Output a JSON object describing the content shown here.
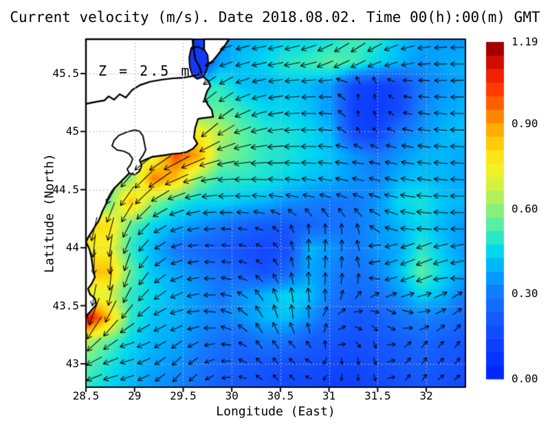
{
  "title": "Current velocity (m/s). Date 2018.08.02. Time 00(h):00(m) GMT",
  "annotation": "Z = 2.5 m",
  "axes": {
    "xlabel": "Longitude (East)",
    "ylabel": "Latitude (North)",
    "x_ticks": [
      {
        "value": 28.5,
        "label": "28.5"
      },
      {
        "value": 29,
        "label": "29"
      },
      {
        "value": 29.5,
        "label": "29.5"
      },
      {
        "value": 30,
        "label": "30"
      },
      {
        "value": 30.5,
        "label": "30.5"
      },
      {
        "value": 31,
        "label": "31"
      },
      {
        "value": 31.5,
        "label": "31.5"
      },
      {
        "value": 32,
        "label": "32"
      }
    ],
    "y_ticks": [
      {
        "value": 45.5,
        "label": "45.5"
      },
      {
        "value": 45,
        "label": "45"
      },
      {
        "value": 44.5,
        "label": "44.5"
      },
      {
        "value": 44,
        "label": "44"
      },
      {
        "value": 43.5,
        "label": "43.5"
      },
      {
        "value": 43,
        "label": "43"
      }
    ]
  },
  "colorbar": {
    "min": 0,
    "max": 1.19,
    "units": "m/s",
    "ticks": [
      {
        "value": 1.19,
        "label": "1.19"
      },
      {
        "value": 0.9,
        "label": "0.90"
      },
      {
        "value": 0.6,
        "label": "0.60"
      },
      {
        "value": 0.3,
        "label": "0.30"
      },
      {
        "value": 0.0,
        "label": "0.00"
      }
    ],
    "stops": [
      [
        0.0,
        "#0020ff"
      ],
      [
        0.18,
        "#1450ff"
      ],
      [
        0.3,
        "#1478ff"
      ],
      [
        0.38,
        "#00a8ff"
      ],
      [
        0.45,
        "#00d8f0"
      ],
      [
        0.5,
        "#2ae8c8"
      ],
      [
        0.55,
        "#5cf0a0"
      ],
      [
        0.6,
        "#8cf078"
      ],
      [
        0.66,
        "#c0f050"
      ],
      [
        0.72,
        "#eef42e"
      ],
      [
        0.78,
        "#fce818"
      ],
      [
        0.84,
        "#ffc80a"
      ],
      [
        0.9,
        "#ffa000"
      ],
      [
        0.97,
        "#ff6400"
      ],
      [
        1.04,
        "#ff3000"
      ],
      [
        1.1,
        "#e61400"
      ],
      [
        1.15,
        "#b40000"
      ],
      [
        1.19,
        "#8c0000"
      ]
    ]
  },
  "chart_data": {
    "type": "heatmap",
    "overlay": "quiver",
    "units": "m/s",
    "depth_m": 2.5,
    "lon_range": [
      28.5,
      32.403
    ],
    "lat_range": [
      42.798,
      45.796
    ],
    "grid_shape": [
      16,
      18
    ],
    "speed_grid": [
      [
        0.1,
        0.1,
        0.1,
        0.1,
        0.1,
        0.1,
        0.35,
        0.4,
        0.42,
        0.45,
        0.45,
        0.48,
        0.52,
        0.5,
        0.42,
        0.38,
        0.36,
        0.35
      ],
      [
        0.12,
        0.12,
        0.12,
        0.12,
        0.12,
        0.12,
        0.38,
        0.42,
        0.45,
        0.5,
        0.52,
        0.55,
        0.52,
        0.45,
        0.4,
        0.35,
        0.38,
        0.4
      ],
      [
        0.5,
        0.5,
        0.5,
        0.5,
        0.5,
        0.5,
        0.5,
        0.42,
        0.4,
        0.42,
        0.4,
        0.35,
        0.15,
        0.12,
        0.15,
        0.3,
        0.35,
        0.38
      ],
      [
        0.55,
        0.55,
        0.55,
        0.55,
        0.55,
        0.55,
        0.55,
        0.5,
        0.45,
        0.45,
        0.42,
        0.35,
        0.12,
        0.1,
        0.15,
        0.32,
        0.38,
        0.4
      ],
      [
        0.75,
        0.75,
        0.75,
        0.75,
        0.75,
        0.75,
        0.65,
        0.55,
        0.5,
        0.48,
        0.45,
        0.4,
        0.15,
        0.12,
        0.3,
        0.35,
        0.4,
        0.42
      ],
      [
        0.7,
        0.7,
        0.7,
        0.7,
        1.0,
        0.9,
        0.6,
        0.55,
        0.5,
        0.48,
        0.45,
        0.42,
        0.35,
        0.3,
        0.35,
        0.4,
        0.4,
        0.38
      ],
      [
        0.6,
        0.6,
        0.6,
        0.95,
        0.85,
        0.6,
        0.5,
        0.5,
        0.48,
        0.45,
        0.42,
        0.4,
        0.35,
        0.32,
        0.4,
        0.42,
        0.4,
        0.38
      ],
      [
        0.55,
        0.55,
        0.85,
        0.6,
        0.5,
        0.45,
        0.45,
        0.42,
        0.4,
        0.35,
        0.32,
        0.3,
        0.3,
        0.35,
        0.45,
        0.48,
        0.42,
        0.4
      ],
      [
        0.8,
        0.8,
        0.55,
        0.45,
        0.4,
        0.35,
        0.3,
        0.25,
        0.22,
        0.2,
        0.25,
        0.28,
        0.3,
        0.35,
        0.4,
        0.45,
        0.4,
        0.35
      ],
      [
        0.75,
        0.75,
        0.5,
        0.4,
        0.3,
        0.25,
        0.22,
        0.18,
        0.15,
        0.18,
        0.4,
        0.35,
        0.3,
        0.35,
        0.38,
        0.5,
        0.42,
        0.35
      ],
      [
        0.85,
        0.85,
        0.55,
        0.42,
        0.38,
        0.32,
        0.28,
        0.22,
        0.18,
        0.25,
        0.38,
        0.32,
        0.28,
        0.32,
        0.42,
        0.55,
        0.45,
        0.38
      ],
      [
        0.7,
        0.7,
        0.5,
        0.45,
        0.4,
        0.35,
        0.3,
        0.35,
        0.4,
        0.45,
        0.42,
        0.3,
        0.25,
        0.28,
        0.35,
        0.45,
        0.4,
        0.3
      ],
      [
        1.15,
        0.85,
        0.5,
        0.42,
        0.4,
        0.35,
        0.32,
        0.35,
        0.4,
        0.42,
        0.35,
        0.25,
        0.2,
        0.22,
        0.28,
        0.32,
        0.3,
        0.25
      ],
      [
        0.65,
        0.55,
        0.45,
        0.4,
        0.38,
        0.32,
        0.28,
        0.25,
        0.3,
        0.28,
        0.22,
        0.2,
        0.18,
        0.2,
        0.22,
        0.25,
        0.22,
        0.2
      ],
      [
        0.55,
        0.48,
        0.42,
        0.38,
        0.35,
        0.3,
        0.25,
        0.22,
        0.2,
        0.18,
        0.18,
        0.15,
        0.15,
        0.18,
        0.2,
        0.22,
        0.2,
        0.18
      ],
      [
        0.5,
        0.45,
        0.4,
        0.35,
        0.32,
        0.28,
        0.22,
        0.2,
        0.18,
        0.15,
        0.15,
        0.12,
        0.12,
        0.15,
        0.18,
        0.2,
        0.18,
        0.15
      ]
    ],
    "angle_deg_grid": [
      [
        200,
        200,
        200,
        200,
        200,
        200,
        200,
        195,
        190,
        195,
        200,
        210,
        215,
        210,
        200,
        190,
        185,
        180
      ],
      [
        205,
        205,
        205,
        205,
        205,
        205,
        200,
        195,
        190,
        190,
        195,
        205,
        210,
        205,
        195,
        185,
        180,
        180
      ],
      [
        215,
        215,
        215,
        215,
        215,
        215,
        215,
        200,
        190,
        185,
        185,
        180,
        100,
        100,
        170,
        175,
        180,
        185
      ],
      [
        220,
        220,
        220,
        220,
        220,
        220,
        220,
        205,
        195,
        185,
        180,
        175,
        90,
        95,
        165,
        170,
        175,
        180
      ],
      [
        225,
        225,
        225,
        225,
        225,
        225,
        215,
        200,
        190,
        185,
        180,
        175,
        120,
        140,
        165,
        170,
        175,
        180
      ],
      [
        215,
        215,
        215,
        215,
        210,
        205,
        195,
        190,
        185,
        180,
        178,
        175,
        172,
        170,
        170,
        172,
        175,
        178
      ],
      [
        230,
        230,
        230,
        220,
        205,
        195,
        185,
        180,
        178,
        175,
        172,
        170,
        168,
        165,
        168,
        172,
        175,
        178
      ],
      [
        245,
        245,
        235,
        215,
        200,
        190,
        182,
        178,
        172,
        168,
        165,
        160,
        155,
        160,
        170,
        175,
        178,
        180
      ],
      [
        255,
        255,
        240,
        215,
        200,
        190,
        180,
        172,
        160,
        120,
        95,
        90,
        95,
        140,
        165,
        170,
        175,
        178
      ],
      [
        265,
        265,
        245,
        220,
        200,
        185,
        175,
        168,
        150,
        110,
        90,
        85,
        90,
        195,
        200,
        205,
        195,
        190
      ],
      [
        270,
        270,
        250,
        225,
        200,
        185,
        170,
        160,
        140,
        105,
        90,
        85,
        88,
        195,
        200,
        200,
        195,
        190
      ],
      [
        260,
        260,
        240,
        220,
        205,
        190,
        175,
        150,
        120,
        100,
        95,
        90,
        60,
        30,
        20,
        15,
        25,
        35
      ],
      [
        250,
        240,
        225,
        210,
        195,
        180,
        165,
        140,
        115,
        100,
        90,
        45,
        0,
        330,
        315,
        0,
        30,
        45
      ],
      [
        230,
        220,
        195,
        205,
        215,
        200,
        180,
        150,
        120,
        135,
        120,
        80,
        320,
        290,
        30,
        45,
        50,
        55
      ],
      [
        210,
        200,
        195,
        210,
        225,
        215,
        190,
        160,
        130,
        135,
        150,
        270,
        270,
        290,
        45,
        60,
        40,
        50
      ],
      [
        200,
        195,
        200,
        215,
        230,
        220,
        200,
        170,
        140,
        120,
        160,
        250,
        260,
        280,
        40,
        55,
        35,
        45
      ]
    ],
    "coast_polygon": [
      [
        28.5,
        45.796
      ],
      [
        29.596,
        45.796
      ],
      [
        29.603,
        45.719
      ],
      [
        29.617,
        45.63
      ],
      [
        29.667,
        45.559
      ],
      [
        29.688,
        45.5
      ],
      [
        29.709,
        45.47
      ],
      [
        29.759,
        45.435
      ],
      [
        29.78,
        45.393
      ],
      [
        29.745,
        45.346
      ],
      [
        29.723,
        45.287
      ],
      [
        29.752,
        45.233
      ],
      [
        29.794,
        45.186
      ],
      [
        29.808,
        45.127
      ],
      [
        29.688,
        45.115
      ],
      [
        29.653,
        45.109
      ],
      [
        29.624,
        45.032
      ],
      [
        29.61,
        44.949
      ],
      [
        29.646,
        44.896
      ],
      [
        29.603,
        44.854
      ],
      [
        29.54,
        44.825
      ],
      [
        29.469,
        44.813
      ],
      [
        29.384,
        44.807
      ],
      [
        29.292,
        44.795
      ],
      [
        29.186,
        44.783
      ],
      [
        29.115,
        44.76
      ],
      [
        29.059,
        44.736
      ],
      [
        29.023,
        44.706
      ],
      [
        28.988,
        44.671
      ],
      [
        28.946,
        44.641
      ],
      [
        28.903,
        44.606
      ],
      [
        28.847,
        44.558
      ],
      [
        28.79,
        44.511
      ],
      [
        28.755,
        44.469
      ],
      [
        28.726,
        44.422
      ],
      [
        28.705,
        44.374
      ],
      [
        28.67,
        44.315
      ],
      [
        28.649,
        44.268
      ],
      [
        28.627,
        44.226
      ],
      [
        28.599,
        44.191
      ],
      [
        28.564,
        44.143
      ],
      [
        28.528,
        44.096
      ],
      [
        28.5,
        44.049
      ],
      [
        28.535,
        43.989
      ],
      [
        28.557,
        43.912
      ],
      [
        28.571,
        43.823
      ],
      [
        28.592,
        43.746
      ],
      [
        28.557,
        43.687
      ],
      [
        28.521,
        43.646
      ],
      [
        28.542,
        43.598
      ],
      [
        28.592,
        43.563
      ],
      [
        28.606,
        43.509
      ],
      [
        28.564,
        43.468
      ],
      [
        28.514,
        43.421
      ],
      [
        28.5,
        43.397
      ]
    ],
    "delta_island_polygon": [
      [
        29.716,
        45.796
      ],
      [
        29.971,
        45.796
      ],
      [
        29.921,
        45.731
      ],
      [
        29.865,
        45.672
      ],
      [
        29.808,
        45.613
      ],
      [
        29.759,
        45.583
      ],
      [
        29.73,
        45.63
      ],
      [
        29.716,
        45.707
      ]
    ],
    "estuary_polygon": [
      [
        29.582,
        45.719
      ],
      [
        29.653,
        45.731
      ],
      [
        29.716,
        45.707
      ],
      [
        29.752,
        45.66
      ],
      [
        29.759,
        45.589
      ],
      [
        29.738,
        45.524
      ],
      [
        29.702,
        45.47
      ],
      [
        29.646,
        45.453
      ],
      [
        29.596,
        45.482
      ],
      [
        29.568,
        45.553
      ],
      [
        29.561,
        45.636
      ]
    ],
    "estuary_fill": "#1538f0",
    "river_line": [
      [
        28.5,
        45.239
      ],
      [
        28.606,
        45.257
      ],
      [
        28.691,
        45.269
      ],
      [
        28.733,
        45.304
      ],
      [
        28.79,
        45.275
      ],
      [
        28.847,
        45.322
      ],
      [
        28.91,
        45.293
      ],
      [
        28.974,
        45.358
      ],
      [
        29.052,
        45.399
      ],
      [
        29.158,
        45.429
      ],
      [
        29.278,
        45.447
      ],
      [
        29.398,
        45.459
      ],
      [
        29.497,
        45.464
      ],
      [
        29.582,
        45.476
      ],
      [
        29.653,
        45.494
      ],
      [
        29.688,
        45.5
      ],
      [
        29.667,
        45.559
      ],
      [
        29.624,
        45.624
      ],
      [
        29.61,
        45.701
      ],
      [
        29.603,
        45.767
      ],
      [
        29.61,
        45.796
      ]
    ],
    "lagoon_polygon": [
      [
        29.002,
        45.014
      ],
      [
        28.924,
        44.997
      ],
      [
        28.839,
        44.967
      ],
      [
        28.79,
        44.925
      ],
      [
        28.769,
        44.878
      ],
      [
        28.818,
        44.842
      ],
      [
        28.889,
        44.831
      ],
      [
        28.946,
        44.807
      ],
      [
        28.981,
        44.765
      ],
      [
        28.96,
        44.718
      ],
      [
        28.924,
        44.677
      ],
      [
        28.946,
        44.641
      ],
      [
        29.002,
        44.629
      ],
      [
        29.052,
        44.659
      ],
      [
        29.073,
        44.706
      ],
      [
        29.052,
        44.754
      ],
      [
        29.087,
        44.795
      ],
      [
        29.115,
        44.842
      ],
      [
        29.101,
        44.902
      ],
      [
        29.087,
        44.961
      ],
      [
        29.052,
        45.002
      ]
    ],
    "grid_line_color": "#b4b4b4"
  }
}
